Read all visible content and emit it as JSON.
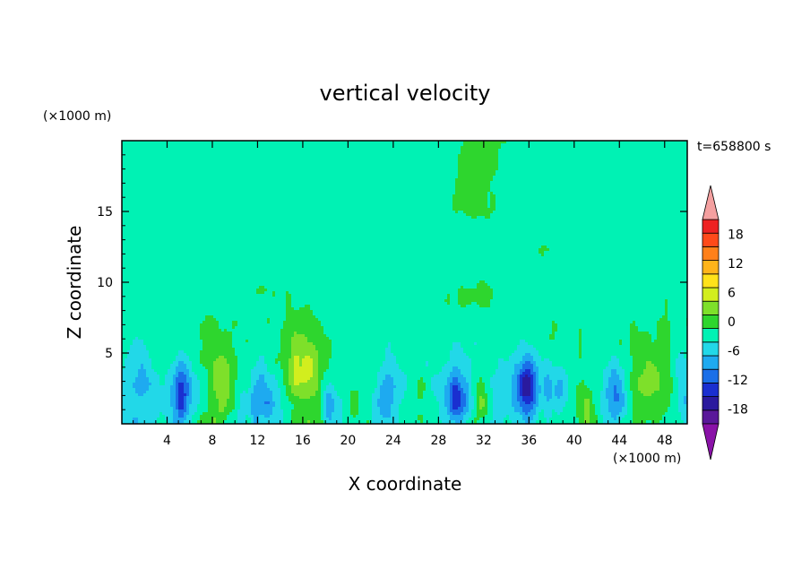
{
  "chart_data": {
    "type": "heatmap",
    "title": "vertical velocity",
    "xlabel": "X coordinate",
    "ylabel": "Z coordinate",
    "x_unit": "(×1000 m)",
    "y_unit": "(×1000 m)",
    "time_label": "t=658800 s",
    "xlim": [
      0,
      50
    ],
    "ylim": [
      0,
      20
    ],
    "x_ticks": [
      4,
      8,
      12,
      16,
      20,
      24,
      28,
      32,
      36,
      40,
      44,
      48
    ],
    "y_ticks": [
      5,
      10,
      15
    ],
    "colorbar": {
      "levels": [
        -21,
        -18,
        -15,
        -12,
        -9,
        -6,
        -3,
        0,
        3,
        6,
        9,
        12,
        15,
        18,
        21
      ],
      "tick_labels": [
        18,
        12,
        6,
        0,
        -6,
        -12,
        -18
      ],
      "colors": [
        "#5a189a",
        "#2a1a9e",
        "#1a2fd0",
        "#1a6fe8",
        "#1eaaf0",
        "#22d8e8",
        "#00f2b4",
        "#2ed62e",
        "#7ee02a",
        "#d2ee1e",
        "#ffe21a",
        "#ffb41a",
        "#ff801a",
        "#ff4a1a",
        "#ee2222"
      ],
      "under_color": "#8a12a8",
      "over_color": "#f4a0a0"
    },
    "features": [
      {
        "x": 8.8,
        "z": 2.3,
        "value": 8,
        "sx": 1.3,
        "sz": 2.6
      },
      {
        "x": 16.0,
        "z": 3.3,
        "value": 9,
        "sx": 1.8,
        "sz": 3.4
      },
      {
        "x": 46.5,
        "z": 2.5,
        "value": 8,
        "sx": 2.0,
        "sz": 2.6
      },
      {
        "x": 41.0,
        "z": 2.0,
        "value": 6,
        "sx": 1.4,
        "sz": 2.2
      },
      {
        "x": 31.8,
        "z": 1.7,
        "value": 6,
        "sx": 0.8,
        "sz": 1.8
      },
      {
        "x": 26.2,
        "z": 1.4,
        "value": 5,
        "sx": 1.0,
        "sz": 1.6
      },
      {
        "x": 20.6,
        "z": 1.8,
        "value": 4,
        "sx": 1.2,
        "sz": 1.6
      },
      {
        "x": 5.2,
        "z": 2.0,
        "value": -10,
        "sx": 0.8,
        "sz": 2.4
      },
      {
        "x": 29.6,
        "z": 1.7,
        "value": -10,
        "sx": 0.9,
        "sz": 2.0
      },
      {
        "x": 35.8,
        "z": 2.3,
        "value": -12,
        "sx": 0.9,
        "sz": 2.6
      },
      {
        "x": 12.5,
        "z": 2.0,
        "value": -5,
        "sx": 1.2,
        "sz": 2.5
      },
      {
        "x": 18.4,
        "z": 1.5,
        "value": -5,
        "sx": 0.7,
        "sz": 1.8
      },
      {
        "x": 43.8,
        "z": 2.0,
        "value": -6,
        "sx": 0.9,
        "sz": 2.2
      },
      {
        "x": 23.5,
        "z": 2.0,
        "value": -4,
        "sx": 1.2,
        "sz": 2.4
      },
      {
        "x": 1.5,
        "z": 3.0,
        "value": -4,
        "sx": 1.2,
        "sz": 2.8
      },
      {
        "x": 38.5,
        "z": 1.5,
        "value": -4,
        "sx": 0.8,
        "sz": 1.8
      },
      {
        "x": 49.6,
        "z": 3.2,
        "value": -4,
        "sx": 0.6,
        "sz": 2.5
      }
    ]
  }
}
